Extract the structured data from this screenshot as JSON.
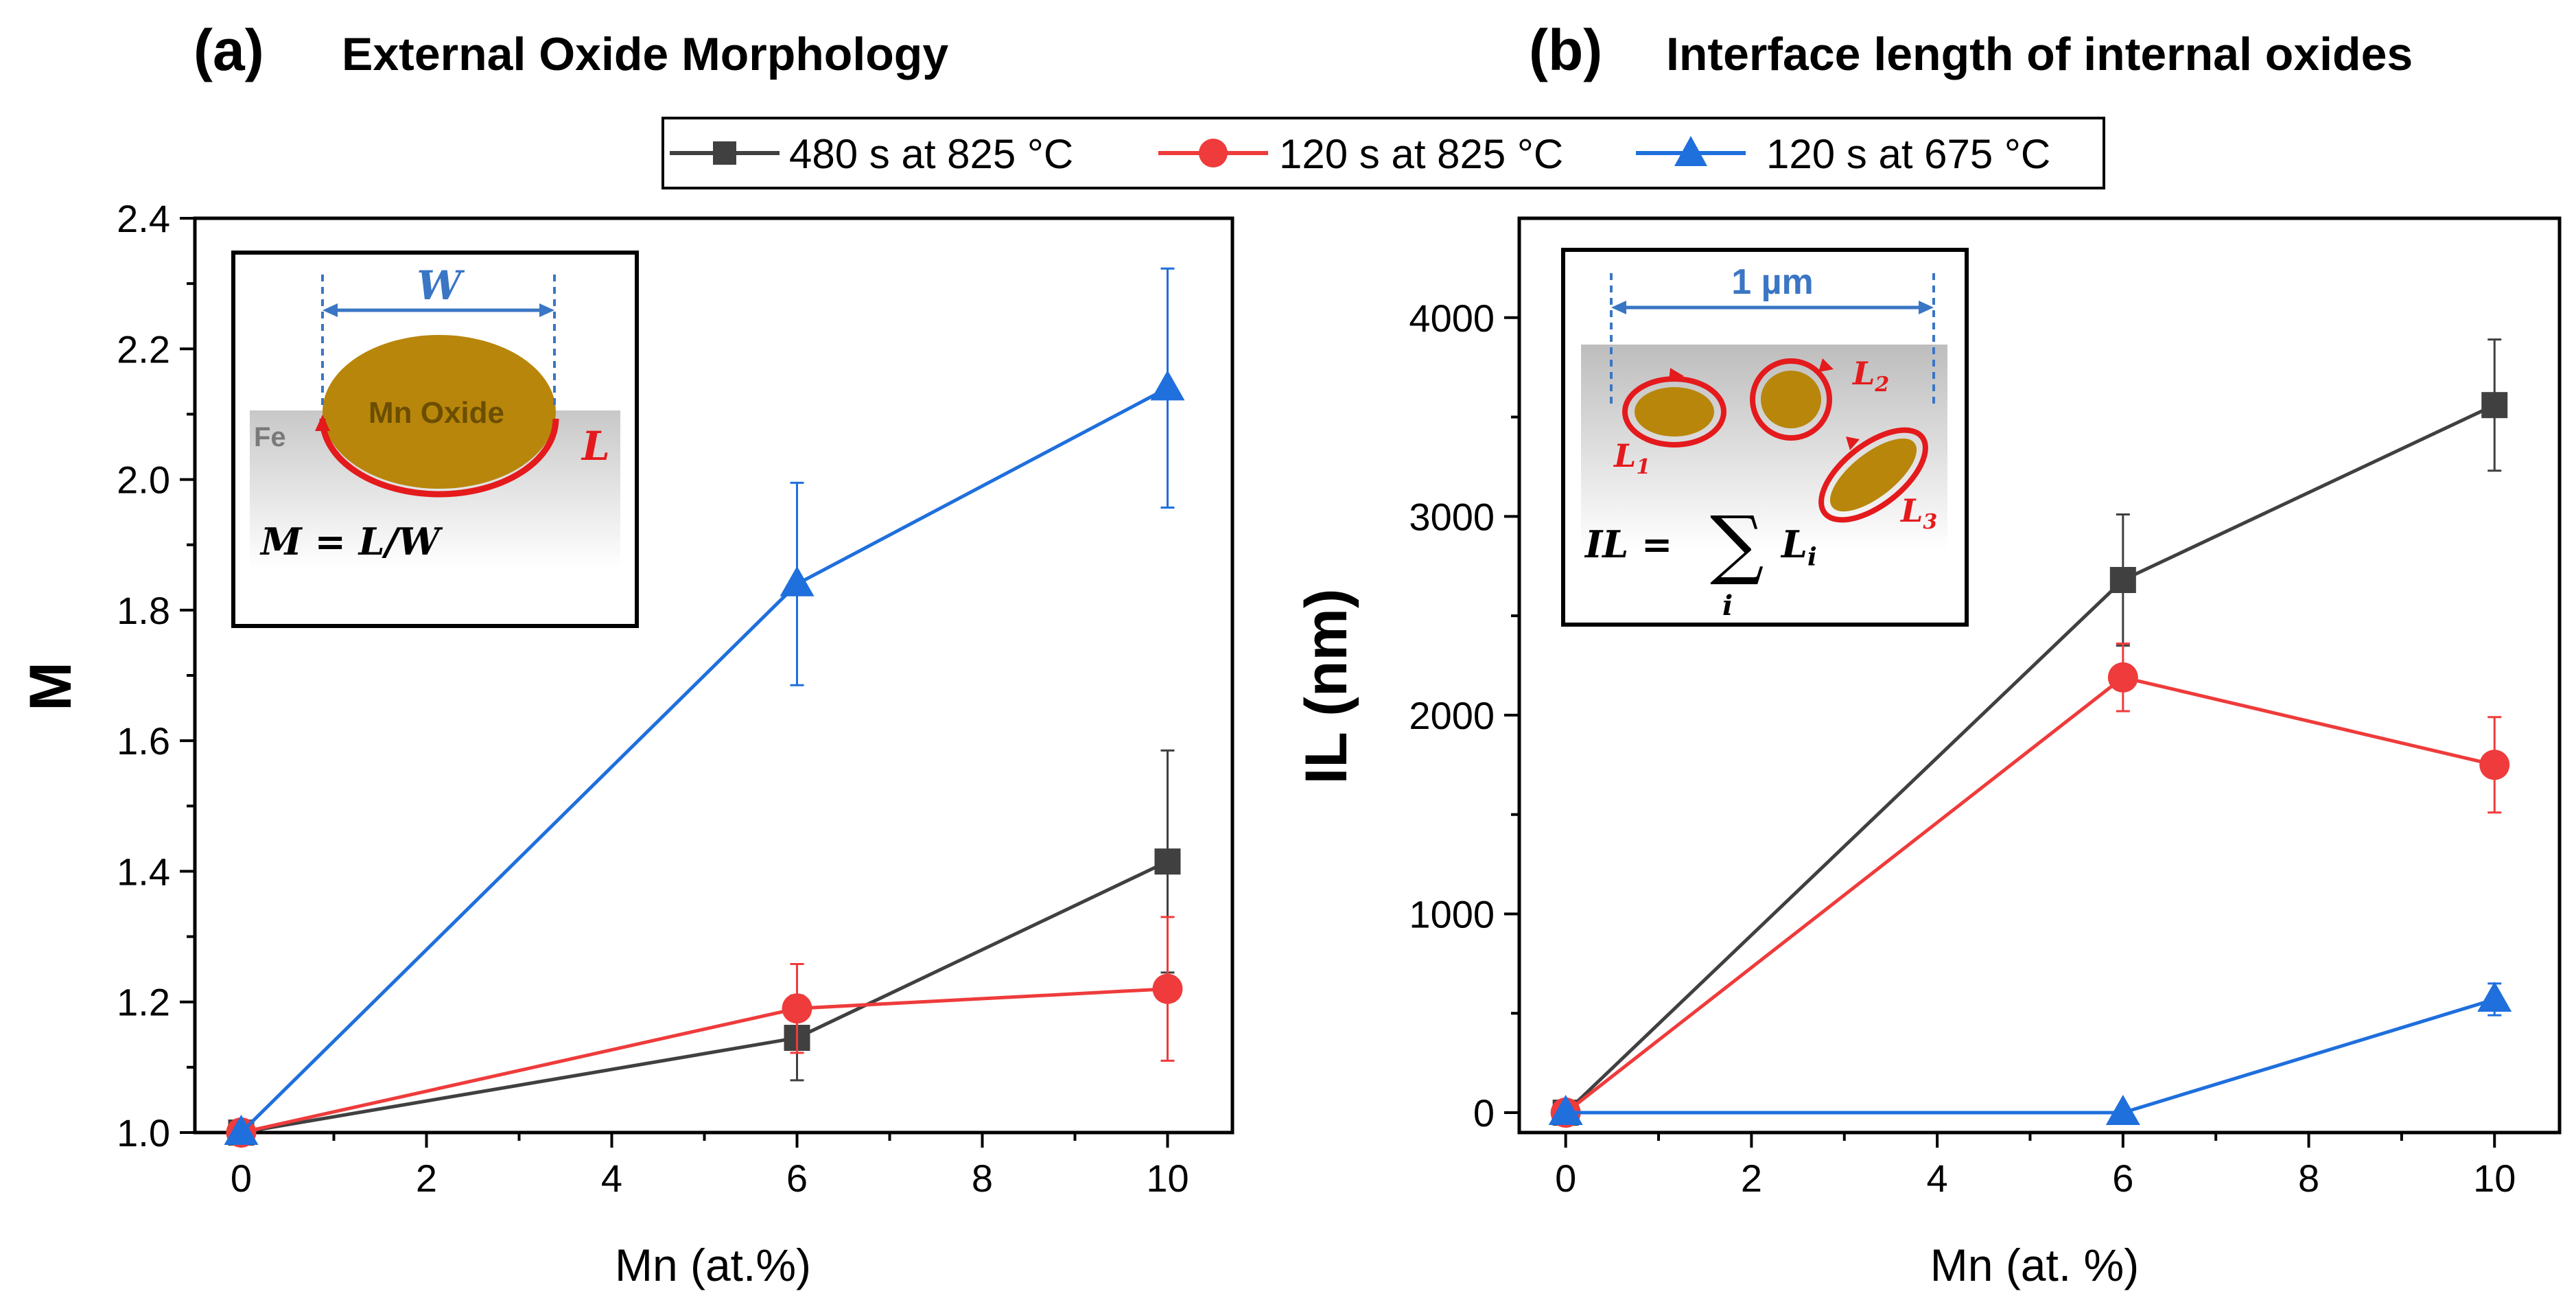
{
  "colors": {
    "s480_825": "#404040",
    "s120_825": "#ef3b3b",
    "s120_675": "#1f6fdd",
    "oxide": "#b8860b",
    "inset_red": "#e41a1c",
    "inset_blue": "#3a76c4"
  },
  "legend": {
    "items": [
      "480 s at 825 °C",
      "120 s at 825 °C",
      "120 s at 675 °C"
    ]
  },
  "chart_data": [
    {
      "type": "line",
      "panel_label": "(a)",
      "title": "External Oxide Morphology",
      "xlabel": "Mn (at.%)",
      "ylabel": "M",
      "xlim": [
        -0.5,
        10.7
      ],
      "ylim": [
        1.0,
        2.4
      ],
      "xticks": [
        "0",
        "2",
        "4",
        "6",
        "8",
        "10"
      ],
      "yticks": [
        "1.0",
        "1.2",
        "1.4",
        "1.6",
        "1.8",
        "2.0",
        "2.2",
        "2.4"
      ],
      "series": [
        {
          "name": "480 s at 825 °C",
          "x": [
            0,
            6,
            10
          ],
          "y": [
            1.0,
            1.145,
            1.415
          ],
          "err": [
            0,
            0.065,
            0.17
          ]
        },
        {
          "name": "120 s at 825 °C",
          "x": [
            0,
            6,
            10
          ],
          "y": [
            1.0,
            1.19,
            1.22
          ],
          "err": [
            0,
            0.068,
            0.11
          ]
        },
        {
          "name": "120 s at 675 °C",
          "x": [
            0,
            6,
            10
          ],
          "y": [
            1.0,
            1.84,
            2.14
          ],
          "err": [
            0,
            0.155,
            0.183
          ]
        }
      ],
      "inset": {
        "width_label": "W",
        "oxide_label": "Mn Oxide",
        "substrate_label": "Fe",
        "length_label": "L",
        "formula": "M = L/W"
      }
    },
    {
      "type": "line",
      "panel_label": "(b)",
      "title": "Interface length of internal oxides",
      "xlabel": "Mn (at. %)",
      "ylabel": "IL (nm)",
      "xlim": [
        -0.5,
        10.7
      ],
      "ylim": [
        -100,
        4500
      ],
      "xticks": [
        "0",
        "2",
        "4",
        "6",
        "8",
        "10"
      ],
      "yticks": [
        "0",
        "1000",
        "2000",
        "3000",
        "4000"
      ],
      "series": [
        {
          "name": "480 s at 825 °C",
          "x": [
            0,
            6,
            10
          ],
          "y": [
            0,
            2680,
            3560
          ],
          "err": [
            0,
            330,
            330
          ]
        },
        {
          "name": "120 s at 825 °C",
          "x": [
            0,
            6,
            10
          ],
          "y": [
            0,
            2190,
            1750
          ],
          "err": [
            0,
            170,
            240
          ]
        },
        {
          "name": "120 s at 675 °C",
          "x": [
            0,
            6,
            10
          ],
          "y": [
            0,
            0,
            570
          ],
          "err": [
            0,
            0,
            80
          ]
        }
      ],
      "inset": {
        "scale_label": "1 µm",
        "l1": "L1",
        "l2": "L2",
        "l3": "L3",
        "formula_lhs": "IL =",
        "sum_symbol": "∑",
        "sum_index": "i",
        "sum_term": "Li"
      }
    }
  ]
}
